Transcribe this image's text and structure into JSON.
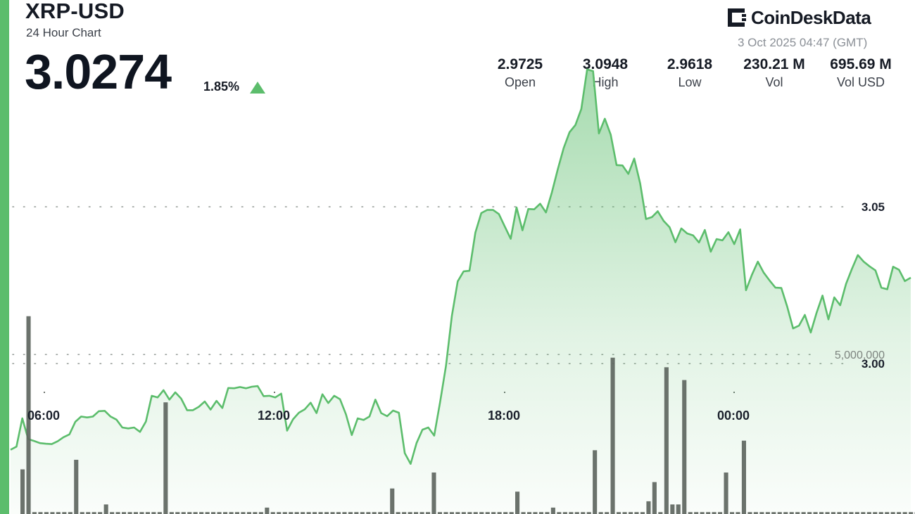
{
  "header": {
    "pair": "XRP-USD",
    "subtitle": "24 Hour Chart",
    "price": "3.0274",
    "change": "1.85%",
    "change_direction_icon": "triangle-up-icon"
  },
  "brand": {
    "name": "CoinDeskData",
    "logo_icon": "coindesk-logo-icon",
    "timestamp": "3 Oct 2025 04:47 (GMT)"
  },
  "stats": [
    {
      "value": "2.9725",
      "label": "Open"
    },
    {
      "value": "3.0948",
      "label": "High"
    },
    {
      "value": "2.9618",
      "label": "Low"
    },
    {
      "value": "230.21 M",
      "label": "Vol"
    },
    {
      "value": "695.69 M",
      "label": "Vol USD"
    }
  ],
  "colors": {
    "accent": "#5cbd6c",
    "line": "#5cbd6c",
    "volume_bar": "#5e6660"
  },
  "chart_data": {
    "type": "area",
    "x_tick_labels": [
      "06:00",
      "12:00",
      "18:00",
      "00:00"
    ],
    "y_tick_labels": [
      "3.05",
      "3.00"
    ],
    "volume_tick_label": "5,000,000",
    "ylim": [
      2.952,
      3.107
    ],
    "volume_ylim": [
      0,
      9500000
    ],
    "grid": true,
    "price": [
      2.9725,
      2.9735,
      2.9825,
      2.9759,
      2.9753,
      2.9746,
      2.9744,
      2.9743,
      2.9752,
      2.9765,
      2.9774,
      2.9814,
      2.9831,
      2.9828,
      2.9831,
      2.9848,
      2.9849,
      2.9831,
      2.9821,
      2.9796,
      2.9793,
      2.9796,
      2.9782,
      2.9815,
      2.9897,
      2.9892,
      2.9915,
      2.9885,
      2.9908,
      2.9888,
      2.9851,
      2.9851,
      2.9862,
      2.9879,
      2.9853,
      2.9881,
      2.9858,
      2.9922,
      2.9921,
      2.9925,
      2.9921,
      2.9926,
      2.9928,
      2.9896,
      2.9897,
      2.9892,
      2.9904,
      2.9786,
      2.9822,
      2.9843,
      2.9854,
      2.9875,
      2.9842,
      2.9902,
      2.9874,
      2.9897,
      2.9886,
      2.9838,
      2.9772,
      2.9825,
      2.982,
      2.9831,
      2.9885,
      2.9842,
      2.9832,
      2.985,
      2.9843,
      2.9714,
      2.968,
      2.9746,
      2.9789,
      2.9796,
      2.977,
      2.9876,
      2.9992,
      3.0152,
      3.0262,
      3.0294,
      3.0296,
      3.0418,
      3.048,
      3.049,
      3.049,
      3.0477,
      3.0437,
      3.0398,
      3.0498,
      3.0425,
      3.0493,
      3.0492,
      3.051,
      3.0482,
      3.0546,
      3.0619,
      3.0687,
      3.0738,
      3.0761,
      3.0812,
      3.0938,
      3.0933,
      3.0734,
      3.0781,
      3.073,
      3.0633,
      3.0632,
      3.0605,
      3.0654,
      3.0575,
      3.0461,
      3.0467,
      3.0486,
      3.0455,
      3.0435,
      3.0387,
      3.0431,
      3.0415,
      3.0409,
      3.0386,
      3.0426,
      3.0357,
      3.0397,
      3.0393,
      3.0419,
      3.0381,
      3.0428,
      3.0234,
      3.0283,
      3.0325,
      3.029,
      3.0265,
      3.0242,
      3.0241,
      3.0181,
      3.0112,
      3.0121,
      3.0155,
      3.0099,
      3.0162,
      3.0217,
      3.0141,
      3.0211,
      3.0186,
      3.0254,
      3.0302,
      3.0346,
      3.0325,
      3.031,
      3.0297,
      3.0242,
      3.0237,
      3.0309,
      3.0299,
      3.0263,
      3.0274
    ],
    "volume": [
      1400000,
      6200000,
      0,
      0,
      0,
      0,
      0,
      0,
      0,
      1700000,
      0,
      0,
      0,
      0,
      300000,
      0,
      0,
      0,
      0,
      0,
      0,
      0,
      0,
      0,
      3500000,
      0,
      0,
      0,
      0,
      0,
      0,
      0,
      0,
      0,
      0,
      0,
      0,
      0,
      0,
      0,
      0,
      200000,
      0,
      0,
      0,
      0,
      0,
      0,
      0,
      0,
      0,
      0,
      0,
      0,
      0,
      0,
      0,
      0,
      0,
      0,
      0,
      0,
      800000,
      0,
      0,
      0,
      0,
      0,
      0,
      1300000,
      0,
      0,
      0,
      0,
      0,
      0,
      0,
      0,
      0,
      0,
      0,
      0,
      0,
      700000,
      0,
      0,
      0,
      0,
      0,
      200000,
      0,
      0,
      0,
      0,
      0,
      0,
      2000000,
      0,
      0,
      4900000,
      0,
      0,
      0,
      0,
      0,
      400000,
      1000000,
      0,
      4600000,
      300000,
      300000,
      4200000,
      0,
      0,
      0,
      0,
      0,
      0,
      1300000,
      0,
      0,
      2300000,
      0,
      0,
      0,
      0,
      0,
      0,
      0,
      0,
      0,
      0,
      0,
      0,
      0,
      0,
      0,
      0,
      0,
      0,
      0,
      0,
      0,
      0,
      0,
      0,
      0,
      0,
      0,
      0,
      0
    ]
  }
}
